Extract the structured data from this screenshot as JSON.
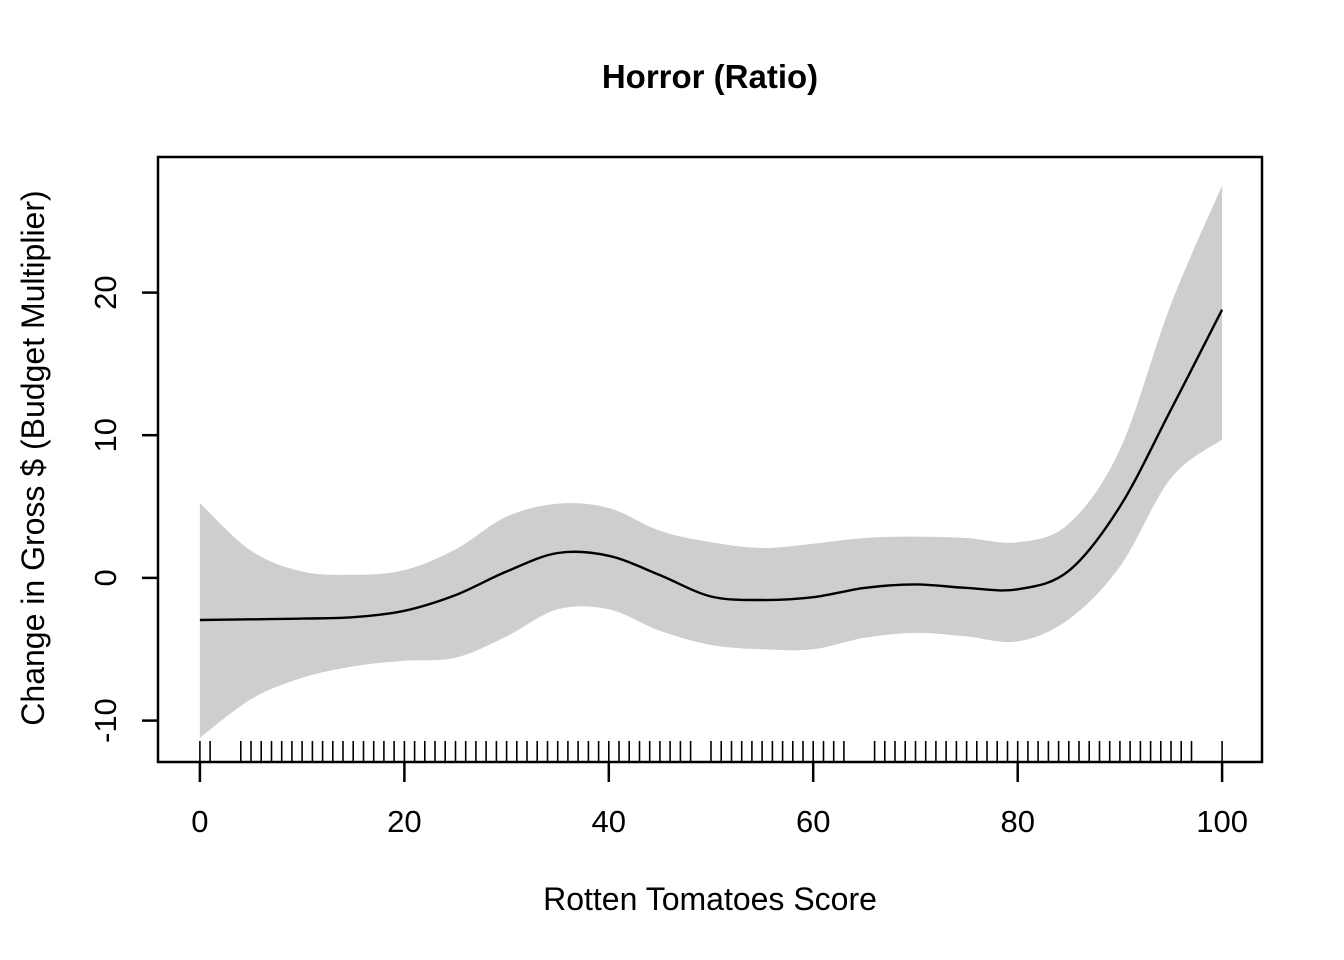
{
  "chart_data": {
    "type": "line",
    "title": "Horror (Ratio)",
    "xlabel": "Rotten Tomatoes Score",
    "ylabel": "Change in Gross $ (Budget Multiplier)",
    "xlim": [
      -4.1,
      103.9
    ],
    "ylim": [
      -12.9,
      29.5
    ],
    "x_ticks": [
      0,
      20,
      40,
      60,
      80,
      100
    ],
    "y_ticks": [
      -10,
      0,
      10,
      20
    ],
    "grid": false,
    "legend": false,
    "background_color": "#ffffff",
    "band_color": "#cecece",
    "line_color": "#000000",
    "x": [
      0,
      5,
      10,
      15,
      20,
      25,
      30,
      35,
      40,
      45,
      50,
      55,
      60,
      65,
      70,
      75,
      80,
      85,
      90,
      95,
      100
    ],
    "series": [
      {
        "name": "smooth_fit",
        "values": [
          -2.95,
          -2.9,
          -2.85,
          -2.75,
          -2.3,
          -1.2,
          0.45,
          1.75,
          1.55,
          0.2,
          -1.3,
          -1.55,
          -1.35,
          -0.7,
          -0.45,
          -0.7,
          -0.8,
          0.5,
          5.0,
          11.8,
          18.8
        ]
      },
      {
        "name": "ci_upper",
        "values": [
          5.25,
          1.9,
          0.45,
          0.22,
          0.55,
          2.0,
          4.3,
          5.2,
          4.9,
          3.3,
          2.5,
          2.1,
          2.4,
          2.8,
          2.9,
          2.8,
          2.5,
          3.8,
          9.0,
          19.2,
          27.5
        ]
      },
      {
        "name": "ci_lower",
        "values": [
          -11.2,
          -8.5,
          -7.0,
          -6.2,
          -5.8,
          -5.6,
          -4.1,
          -2.2,
          -2.2,
          -3.7,
          -4.7,
          -5.0,
          -5.0,
          -4.2,
          -3.85,
          -4.1,
          -4.45,
          -2.9,
          0.8,
          7.0,
          9.7
        ]
      }
    ],
    "rug_x": [
      0,
      1,
      4,
      5,
      6,
      7,
      8,
      9,
      10,
      11,
      12,
      13,
      14,
      15,
      16,
      17,
      18,
      19,
      20,
      21,
      22,
      23,
      24,
      25,
      26,
      27,
      28,
      29,
      30,
      31,
      32,
      33,
      34,
      35,
      36,
      37,
      38,
      39,
      40,
      41,
      42,
      43,
      44,
      45,
      46,
      47,
      48,
      50,
      51,
      52,
      53,
      54,
      55,
      56,
      57,
      58,
      59,
      60,
      61,
      62,
      63,
      66,
      67,
      68,
      69,
      70,
      71,
      72,
      73,
      74,
      75,
      76,
      77,
      78,
      79,
      80,
      81,
      82,
      83,
      84,
      85,
      86,
      87,
      88,
      89,
      90,
      91,
      92,
      93,
      94,
      95,
      96,
      97,
      100
    ]
  }
}
